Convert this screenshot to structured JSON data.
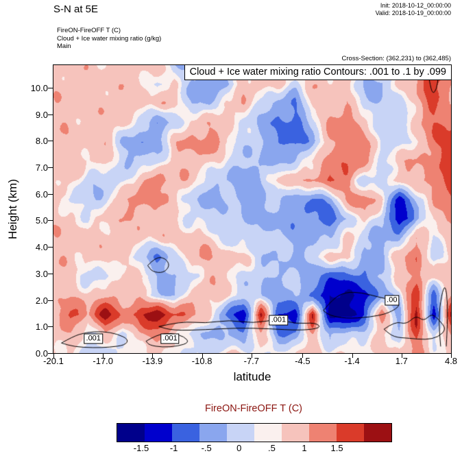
{
  "header": {
    "title": "S-N at 5E",
    "init": "Init: 2018-10-12_00:00:00",
    "valid": "Valid: 2018-10-19_00:00:00",
    "field1": "FireON-FireOFF T   (C)",
    "field2": "Cloud + Ice water mixing ratio   (g/kg)",
    "field3": "Main",
    "cross_section": "Cross-Section: (362,231) to (362,485)"
  },
  "chart_data": {
    "type": "heatmap",
    "title": "Cloud + Ice water mixing ratio Contours: .001 to .1 by .099",
    "xlabel": "latitude",
    "ylabel": "Height (km)",
    "fill_field": "FireON-FireOFF T (C)",
    "contour_field": "Cloud + Ice water mixing ratio (g/kg)",
    "contour_levels_note": ".001 to .1 by .099",
    "x_range": [
      -20.1,
      4.8
    ],
    "y_range": [
      0,
      10.85
    ],
    "x_ticks": [
      "-20.1",
      "-17.0",
      "-13.9",
      "-10.8",
      "-7.7",
      "-4.5",
      "-1.4",
      "1.7",
      "4.8"
    ],
    "y_ticks": [
      "0.0",
      "1.0",
      "2.0",
      "3.0",
      "4.0",
      "5.0",
      "6.0",
      "7.0",
      "8.0",
      "9.0",
      "10.0"
    ],
    "color_levels": [
      -1.75,
      -1.3,
      -0.85,
      -0.45,
      -0.1,
      0.1,
      0.45,
      0.85,
      1.3
    ],
    "colors": [
      "#00008b",
      "#0000cd",
      "#3a62e0",
      "#8aa6ee",
      "#c8d4f6",
      "#faf0ee",
      "#f6c3bc",
      "#ee8272",
      "#da3b2a",
      "#9c1013"
    ],
    "grid": [
      [
        0.3,
        0.3,
        0.3,
        0.2,
        0.3,
        0.3,
        0.3,
        -0.4,
        -0.6,
        -0.4,
        0.3,
        0.3,
        0.3,
        0.2,
        0.3,
        0.3,
        0.3,
        0.2,
        -0.3,
        -0.4,
        0.3,
        0.5,
        1.4,
        0.6
      ],
      [
        0.3,
        0.3,
        0.2,
        0.3,
        0.3,
        0.2,
        -0.2,
        0.3,
        -0.5,
        -0.9,
        -0.6,
        0.3,
        0.3,
        0.3,
        -0.3,
        0.3,
        0.3,
        0.3,
        -0.5,
        -0.6,
        0.2,
        0.4,
        1.2,
        0.5
      ],
      [
        0.3,
        0.2,
        0.3,
        0.3,
        0.3,
        0.3,
        0.3,
        0.2,
        -0.4,
        -0.5,
        0.3,
        0.3,
        -0.2,
        -0.7,
        -0.8,
        0.3,
        0.3,
        0.3,
        -0.3,
        -0.4,
        -0.3,
        0.3,
        0.9,
        0.4
      ],
      [
        0.3,
        0.3,
        0.3,
        0.2,
        0.3,
        -0.3,
        -0.7,
        -0.4,
        0.3,
        0.3,
        0.3,
        -0.2,
        -0.5,
        -0.9,
        -1.0,
        -0.4,
        0.6,
        0.8,
        0.2,
        -0.3,
        -0.4,
        0.3,
        0.8,
        0.9
      ],
      [
        0.3,
        0.3,
        0.3,
        0.3,
        -0.4,
        -0.8,
        -0.6,
        0.3,
        0.5,
        0.7,
        0.3,
        -0.3,
        -0.4,
        -0.9,
        -1.1,
        -0.5,
        0.4,
        0.7,
        0.6,
        -0.2,
        -0.4,
        0.2,
        0.7,
        1.1
      ],
      [
        0.3,
        0.3,
        0.2,
        0.3,
        -0.3,
        -0.5,
        -0.3,
        0.3,
        0.4,
        0.3,
        -0.2,
        -0.4,
        -0.6,
        -0.5,
        -0.4,
        0.2,
        0.5,
        0.9,
        0.7,
        -0.2,
        0.3,
        0.4,
        0.6,
        0.9
      ],
      [
        0.3,
        0.2,
        -0.3,
        -0.5,
        -0.3,
        0.4,
        0.7,
        0.4,
        0.2,
        -0.3,
        -0.5,
        -0.7,
        -0.5,
        0.3,
        0.3,
        0.5,
        1.0,
        0.7,
        -0.5,
        -0.3,
        0.3,
        0.4,
        0.7,
        1.0
      ],
      [
        0.3,
        -0.2,
        -0.4,
        -0.2,
        0.4,
        0.7,
        0.4,
        0.3,
        -0.4,
        -0.6,
        -0.4,
        -0.5,
        -0.6,
        -0.3,
        -0.6,
        -0.9,
        -0.7,
        0.5,
        0.8,
        0.2,
        -1.5,
        -0.5,
        0.5,
        0.8
      ],
      [
        0.3,
        0.3,
        -0.2,
        0.3,
        0.3,
        0.4,
        0.3,
        0.2,
        -0.2,
        -0.3,
        -0.3,
        -0.4,
        -0.5,
        -0.7,
        -0.8,
        -0.9,
        -1.1,
        -0.4,
        0.3,
        -0.4,
        -1.7,
        -0.7,
        0.3,
        0.6
      ],
      [
        0.3,
        0.3,
        0.3,
        0.2,
        0.3,
        0.3,
        0.2,
        0.3,
        0.3,
        0.2,
        -0.2,
        -0.3,
        -0.3,
        -0.4,
        -0.5,
        -0.5,
        -0.4,
        0.2,
        -0.4,
        -0.6,
        -0.5,
        0.6,
        -0.3,
        0.4
      ],
      [
        0.3,
        0.3,
        0.2,
        0.3,
        0.2,
        -0.4,
        -0.9,
        -0.3,
        0.5,
        0.4,
        0.3,
        0.2,
        -0.3,
        -0.4,
        -0.5,
        -0.4,
        0.3,
        0.3,
        -0.6,
        -0.5,
        0.3,
        0.8,
        -0.4,
        0.3
      ],
      [
        0.3,
        0.2,
        -0.3,
        -0.4,
        0.3,
        0.3,
        -0.4,
        -0.6,
        -0.3,
        0.3,
        0.3,
        -0.3,
        -0.4,
        -0.5,
        -0.4,
        -0.6,
        -1.2,
        -1.0,
        -1.0,
        -0.4,
        0.3,
        0.7,
        0.2,
        0.4
      ],
      [
        0.3,
        0.3,
        0.3,
        0.4,
        0.3,
        0.2,
        -0.4,
        -0.5,
        0.4,
        0.3,
        0.2,
        -0.3,
        -0.5,
        -0.6,
        -0.4,
        -0.9,
        -1.9,
        -1.8,
        -1.5,
        -0.6,
        -0.3,
        1.2,
        -1.2,
        0.5
      ],
      [
        0.4,
        1.0,
        0.5,
        1.6,
        0.6,
        1.2,
        1.8,
        1.0,
        0.5,
        0.3,
        -1.0,
        -1.6,
        1.4,
        -1.2,
        -1.8,
        1.5,
        -2.0,
        -1.9,
        -1.3,
        0.8,
        -0.8,
        1.6,
        -1.5,
        1.3
      ],
      [
        0.2,
        0.4,
        -0.3,
        0.4,
        -0.2,
        0.4,
        0.5,
        0.2,
        -0.3,
        -0.4,
        -0.5,
        -0.8,
        0.4,
        -0.9,
        -0.7,
        0.5,
        -0.6,
        -0.4,
        -0.2,
        0.2,
        -0.2,
        0.9,
        -0.3,
        0.4
      ],
      [
        0.1,
        0.2,
        -0.2,
        -0.3,
        -0.2,
        0.1,
        0.2,
        0.1,
        -0.2,
        -0.3,
        0.1,
        0.1,
        0.0,
        -0.1,
        0.1,
        0.2,
        0.1,
        0.1,
        0.1,
        0.1,
        0.1,
        0.6,
        0.1,
        0.2
      ]
    ],
    "contour_labels": [
      {
        "text": ".001",
        "x": -17.6,
        "y": 0.55
      },
      {
        "text": ".001",
        "x": -12.8,
        "y": 0.55
      },
      {
        "text": ".001",
        "x": -6.0,
        "y": 1.25
      },
      {
        "text": ".00",
        "x": 1.1,
        "y": 2.0
      }
    ],
    "contours": [
      [
        [
          -19.6,
          0.38
        ],
        [
          -18.9,
          0.62
        ],
        [
          -18.1,
          0.78
        ],
        [
          -17.0,
          0.82
        ],
        [
          -16.1,
          0.72
        ],
        [
          -15.4,
          0.52
        ],
        [
          -15.6,
          0.3
        ],
        [
          -16.6,
          0.22
        ],
        [
          -17.6,
          0.2
        ],
        [
          -18.8,
          0.24
        ],
        [
          -19.6,
          0.38
        ]
      ],
      [
        [
          -14.3,
          0.45
        ],
        [
          -13.6,
          0.7
        ],
        [
          -12.7,
          0.76
        ],
        [
          -11.9,
          0.62
        ],
        [
          -11.6,
          0.4
        ],
        [
          -12.3,
          0.26
        ],
        [
          -13.3,
          0.22
        ],
        [
          -14.1,
          0.3
        ],
        [
          -14.3,
          0.45
        ]
      ],
      [
        [
          -13.5,
          1.0
        ],
        [
          -12.1,
          1.2
        ],
        [
          -10.6,
          1.12
        ],
        [
          -9.1,
          1.25
        ],
        [
          -7.6,
          1.12
        ],
        [
          -6.1,
          1.28
        ],
        [
          -4.9,
          1.1
        ],
        [
          -3.7,
          1.15
        ],
        [
          -3.3,
          0.95
        ],
        [
          -4.6,
          0.85
        ],
        [
          -6.6,
          0.92
        ],
        [
          -8.6,
          0.95
        ],
        [
          -10.6,
          0.88
        ],
        [
          -12.6,
          0.85
        ],
        [
          -13.5,
          1.0
        ]
      ],
      [
        [
          -3.2,
          1.6
        ],
        [
          -2.6,
          2.05
        ],
        [
          -1.8,
          2.3
        ],
        [
          -0.8,
          2.28
        ],
        [
          0.2,
          2.12
        ],
        [
          1.1,
          2.0
        ],
        [
          1.7,
          1.82
        ],
        [
          0.9,
          1.5
        ],
        [
          -0.3,
          1.35
        ],
        [
          -1.8,
          1.3
        ],
        [
          -2.8,
          1.42
        ],
        [
          -3.2,
          1.6
        ]
      ],
      [
        [
          0.6,
          0.9
        ],
        [
          1.3,
          1.2
        ],
        [
          2.0,
          1.08
        ],
        [
          2.6,
          1.42
        ],
        [
          3.1,
          1.2
        ],
        [
          3.6,
          1.5
        ],
        [
          4.1,
          1.22
        ],
        [
          4.5,
          0.9
        ],
        [
          4.0,
          0.6
        ],
        [
          3.2,
          0.5
        ],
        [
          2.2,
          0.56
        ],
        [
          1.2,
          0.6
        ],
        [
          0.6,
          0.9
        ]
      ],
      [
        [
          3.3,
          10.85
        ],
        [
          3.45,
          10.2
        ],
        [
          3.65,
          9.75
        ],
        [
          3.9,
          9.95
        ],
        [
          4.0,
          10.4
        ],
        [
          4.1,
          10.85
        ]
      ],
      [
        [
          -14.2,
          3.3
        ],
        [
          -13.7,
          3.62
        ],
        [
          -13.1,
          3.58
        ],
        [
          -12.8,
          3.3
        ],
        [
          -13.2,
          3.02
        ],
        [
          -13.9,
          3.06
        ],
        [
          -14.2,
          3.3
        ]
      ],
      [
        [
          4.15,
          0.25
        ],
        [
          4.0,
          1.2
        ],
        [
          4.2,
          2.2
        ],
        [
          4.45,
          2.6
        ],
        [
          4.6,
          1.8
        ],
        [
          4.55,
          0.8
        ],
        [
          4.5,
          0.25
        ]
      ]
    ],
    "colorbar": {
      "title": "FireON-FireOFF T  (C)",
      "title_color": "#8b1510",
      "tick_labels": [
        "-1.5",
        "-1",
        "-.5",
        "0",
        ".5",
        "1",
        "1.5"
      ],
      "colors": [
        "#00008b",
        "#0000cd",
        "#3a62e0",
        "#8aa6ee",
        "#c8d4f6",
        "#faf0ee",
        "#f6c3bc",
        "#ee8272",
        "#da3b2a",
        "#9c1013"
      ]
    }
  }
}
